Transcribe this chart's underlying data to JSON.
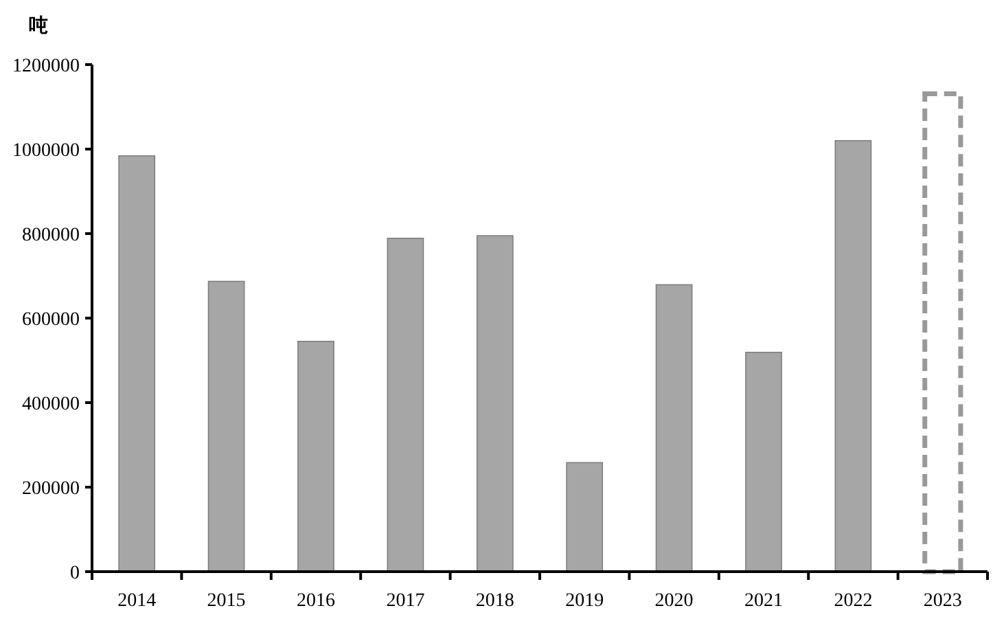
{
  "chart_data": {
    "type": "bar",
    "ylabel": "吨",
    "categories": [
      "2014",
      "2015",
      "2016",
      "2017",
      "2018",
      "2019",
      "2020",
      "2021",
      "2022",
      "2023"
    ],
    "series": [
      {
        "color": "#a6a6a6",
        "values": [
          984000,
          687000,
          545000,
          789000,
          795000,
          258000,
          679000,
          519000,
          1020000,
          null
        ]
      },
      {
        "color": "#999999",
        "line_style": "dashed",
        "values": [
          null,
          null,
          null,
          null,
          null,
          null,
          null,
          null,
          null,
          1131000
        ]
      }
    ],
    "ylim": [
      0,
      1200000
    ],
    "yticks": [
      0,
      200000,
      400000,
      600000,
      800000,
      1000000,
      1200000
    ],
    "grid": false
  }
}
